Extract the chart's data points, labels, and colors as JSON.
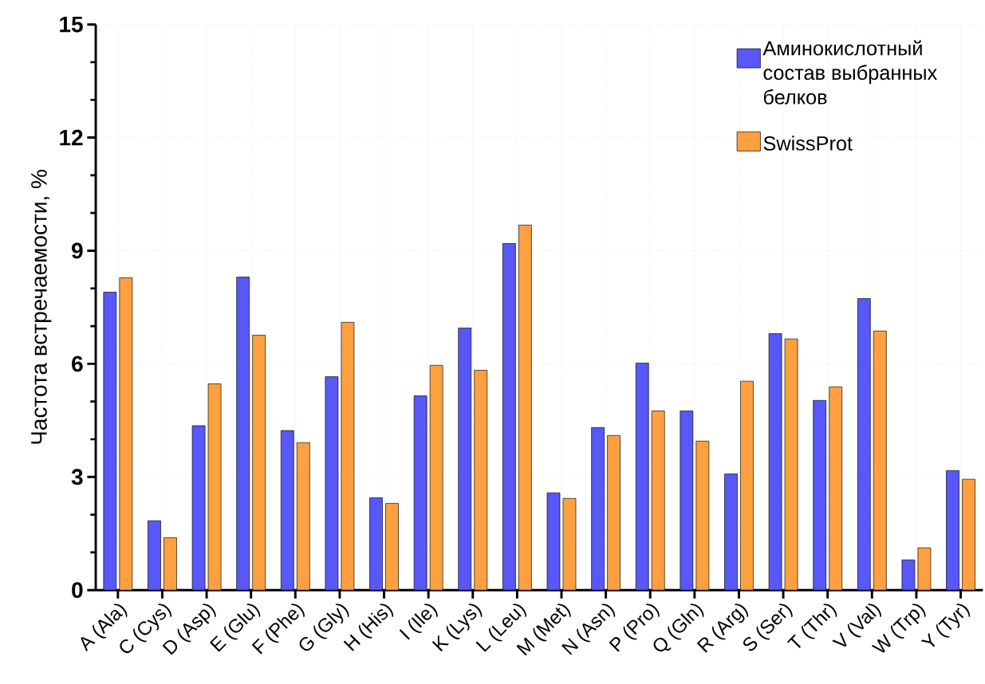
{
  "chart_data": {
    "type": "bar",
    "ylabel": "Частота встречаемости, %",
    "categories": [
      "A (Ala)",
      "C (Cys)",
      "D (Asp)",
      "E (Glu)",
      "F (Phe)",
      "G (Gly)",
      "H (His)",
      "I (Ile)",
      "K (Lys)",
      "L (Leu)",
      "M (Met)",
      "N (Asn)",
      "P (Pro)",
      "Q (Gln)",
      "R (Arg)",
      "S (Ser)",
      "T (Thr)",
      "V (Val)",
      "W (Trp)",
      "Y (Tyr)"
    ],
    "series": [
      {
        "name": "Аминокислотный состав выбранных белков",
        "color": "#5858f8",
        "values": [
          7.9,
          1.84,
          4.36,
          8.3,
          4.23,
          5.66,
          2.45,
          5.15,
          6.95,
          9.19,
          2.58,
          4.31,
          6.02,
          4.75,
          3.08,
          6.8,
          5.03,
          7.73,
          0.8,
          3.17
        ]
      },
      {
        "name": "SwissProt",
        "color": "#ffa040",
        "values": [
          8.28,
          1.39,
          5.47,
          6.76,
          3.91,
          7.1,
          2.3,
          5.96,
          5.83,
          9.68,
          2.43,
          4.1,
          4.75,
          3.95,
          5.54,
          6.66,
          5.39,
          6.87,
          1.12,
          2.94
        ]
      }
    ],
    "ylim": [
      0,
      15
    ],
    "yticks": [
      0,
      3,
      6,
      9,
      12,
      15
    ],
    "grid": true,
    "legend": "top right"
  }
}
